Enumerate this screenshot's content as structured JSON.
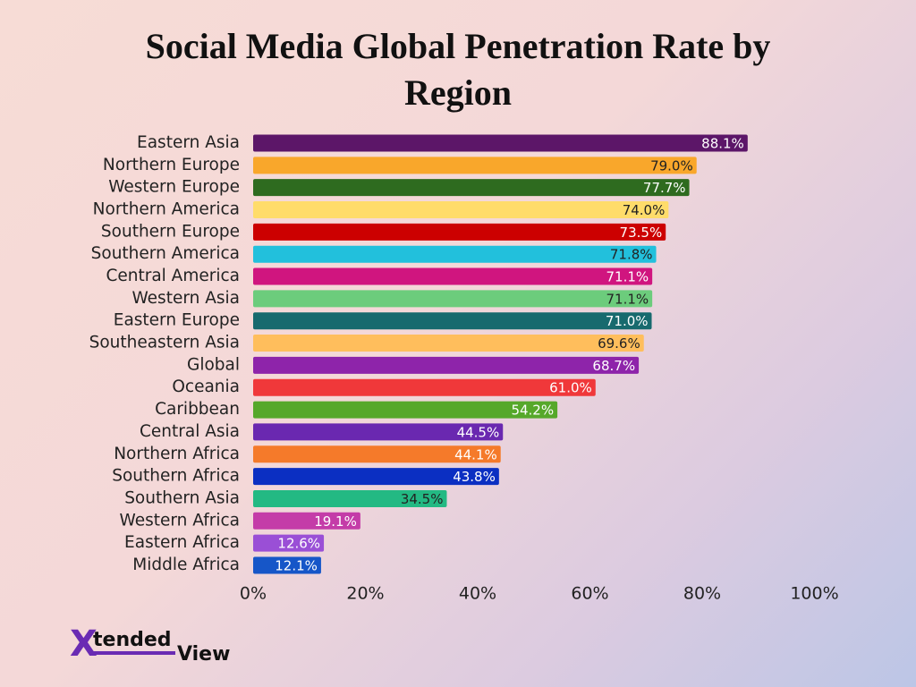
{
  "chart_data": {
    "type": "bar",
    "orientation": "horizontal",
    "title": "Social Media Global Penetration Rate by Region",
    "categories": [
      "Eastern Asia",
      "Northern Europe",
      "Western Europe",
      "Northern America",
      "Southern Europe",
      "Southern America",
      "Central America",
      "Western Asia",
      "Eastern Europe",
      "Southeastern Asia",
      "Global",
      "Oceania",
      "Caribbean",
      "Central Asia",
      "Northern Africa",
      "Southern Africa",
      "Southern Asia",
      "Western Africa",
      "Eastern Africa",
      "Middle Africa"
    ],
    "values": [
      88.1,
      79.0,
      77.7,
      74.0,
      73.5,
      71.8,
      71.1,
      71.1,
      71.0,
      69.6,
      68.7,
      61.0,
      54.2,
      44.5,
      44.1,
      43.8,
      34.5,
      19.1,
      12.6,
      12.1
    ],
    "value_labels": [
      "88.1%",
      "79.0%",
      "77.7%",
      "74.0%",
      "73.5%",
      "71.8%",
      "71.1%",
      "71.1%",
      "71.0%",
      "69.6%",
      "68.7%",
      "61.0%",
      "54.2%",
      "44.5%",
      "44.1%",
      "43.8%",
      "34.5%",
      "19.1%",
      "12.6%",
      "12.1%"
    ],
    "colors": [
      "#5c1668",
      "#f9a72b",
      "#2e6b1f",
      "#ffdc6a",
      "#cc0000",
      "#22c0dc",
      "#d0157f",
      "#6ccc7c",
      "#176a6e",
      "#ffbe5c",
      "#8e24aa",
      "#f0383a",
      "#56a82a",
      "#6a28b0",
      "#f57a2a",
      "#0b2fc2",
      "#23b983",
      "#c43ca8",
      "#9a4fd6",
      "#1656c8"
    ],
    "value_label_colors": [
      "#ffffff",
      "#222222",
      "#ffffff",
      "#222222",
      "#ffffff",
      "#222222",
      "#ffffff",
      "#222222",
      "#ffffff",
      "#222222",
      "#ffffff",
      "#ffffff",
      "#ffffff",
      "#ffffff",
      "#ffffff",
      "#ffffff",
      "#222222",
      "#ffffff",
      "#ffffff",
      "#ffffff"
    ],
    "xlim": [
      0,
      100
    ],
    "xticks": [
      {
        "value": 0,
        "label": "0%"
      },
      {
        "value": 20,
        "label": "20%"
      },
      {
        "value": 40,
        "label": "40%"
      },
      {
        "value": 60,
        "label": "60%"
      },
      {
        "value": 80,
        "label": "80%"
      },
      {
        "value": 100,
        "label": "100%"
      }
    ],
    "grid": false
  },
  "logo": {
    "mark": "X",
    "word1": "tended",
    "word2": "View"
  }
}
